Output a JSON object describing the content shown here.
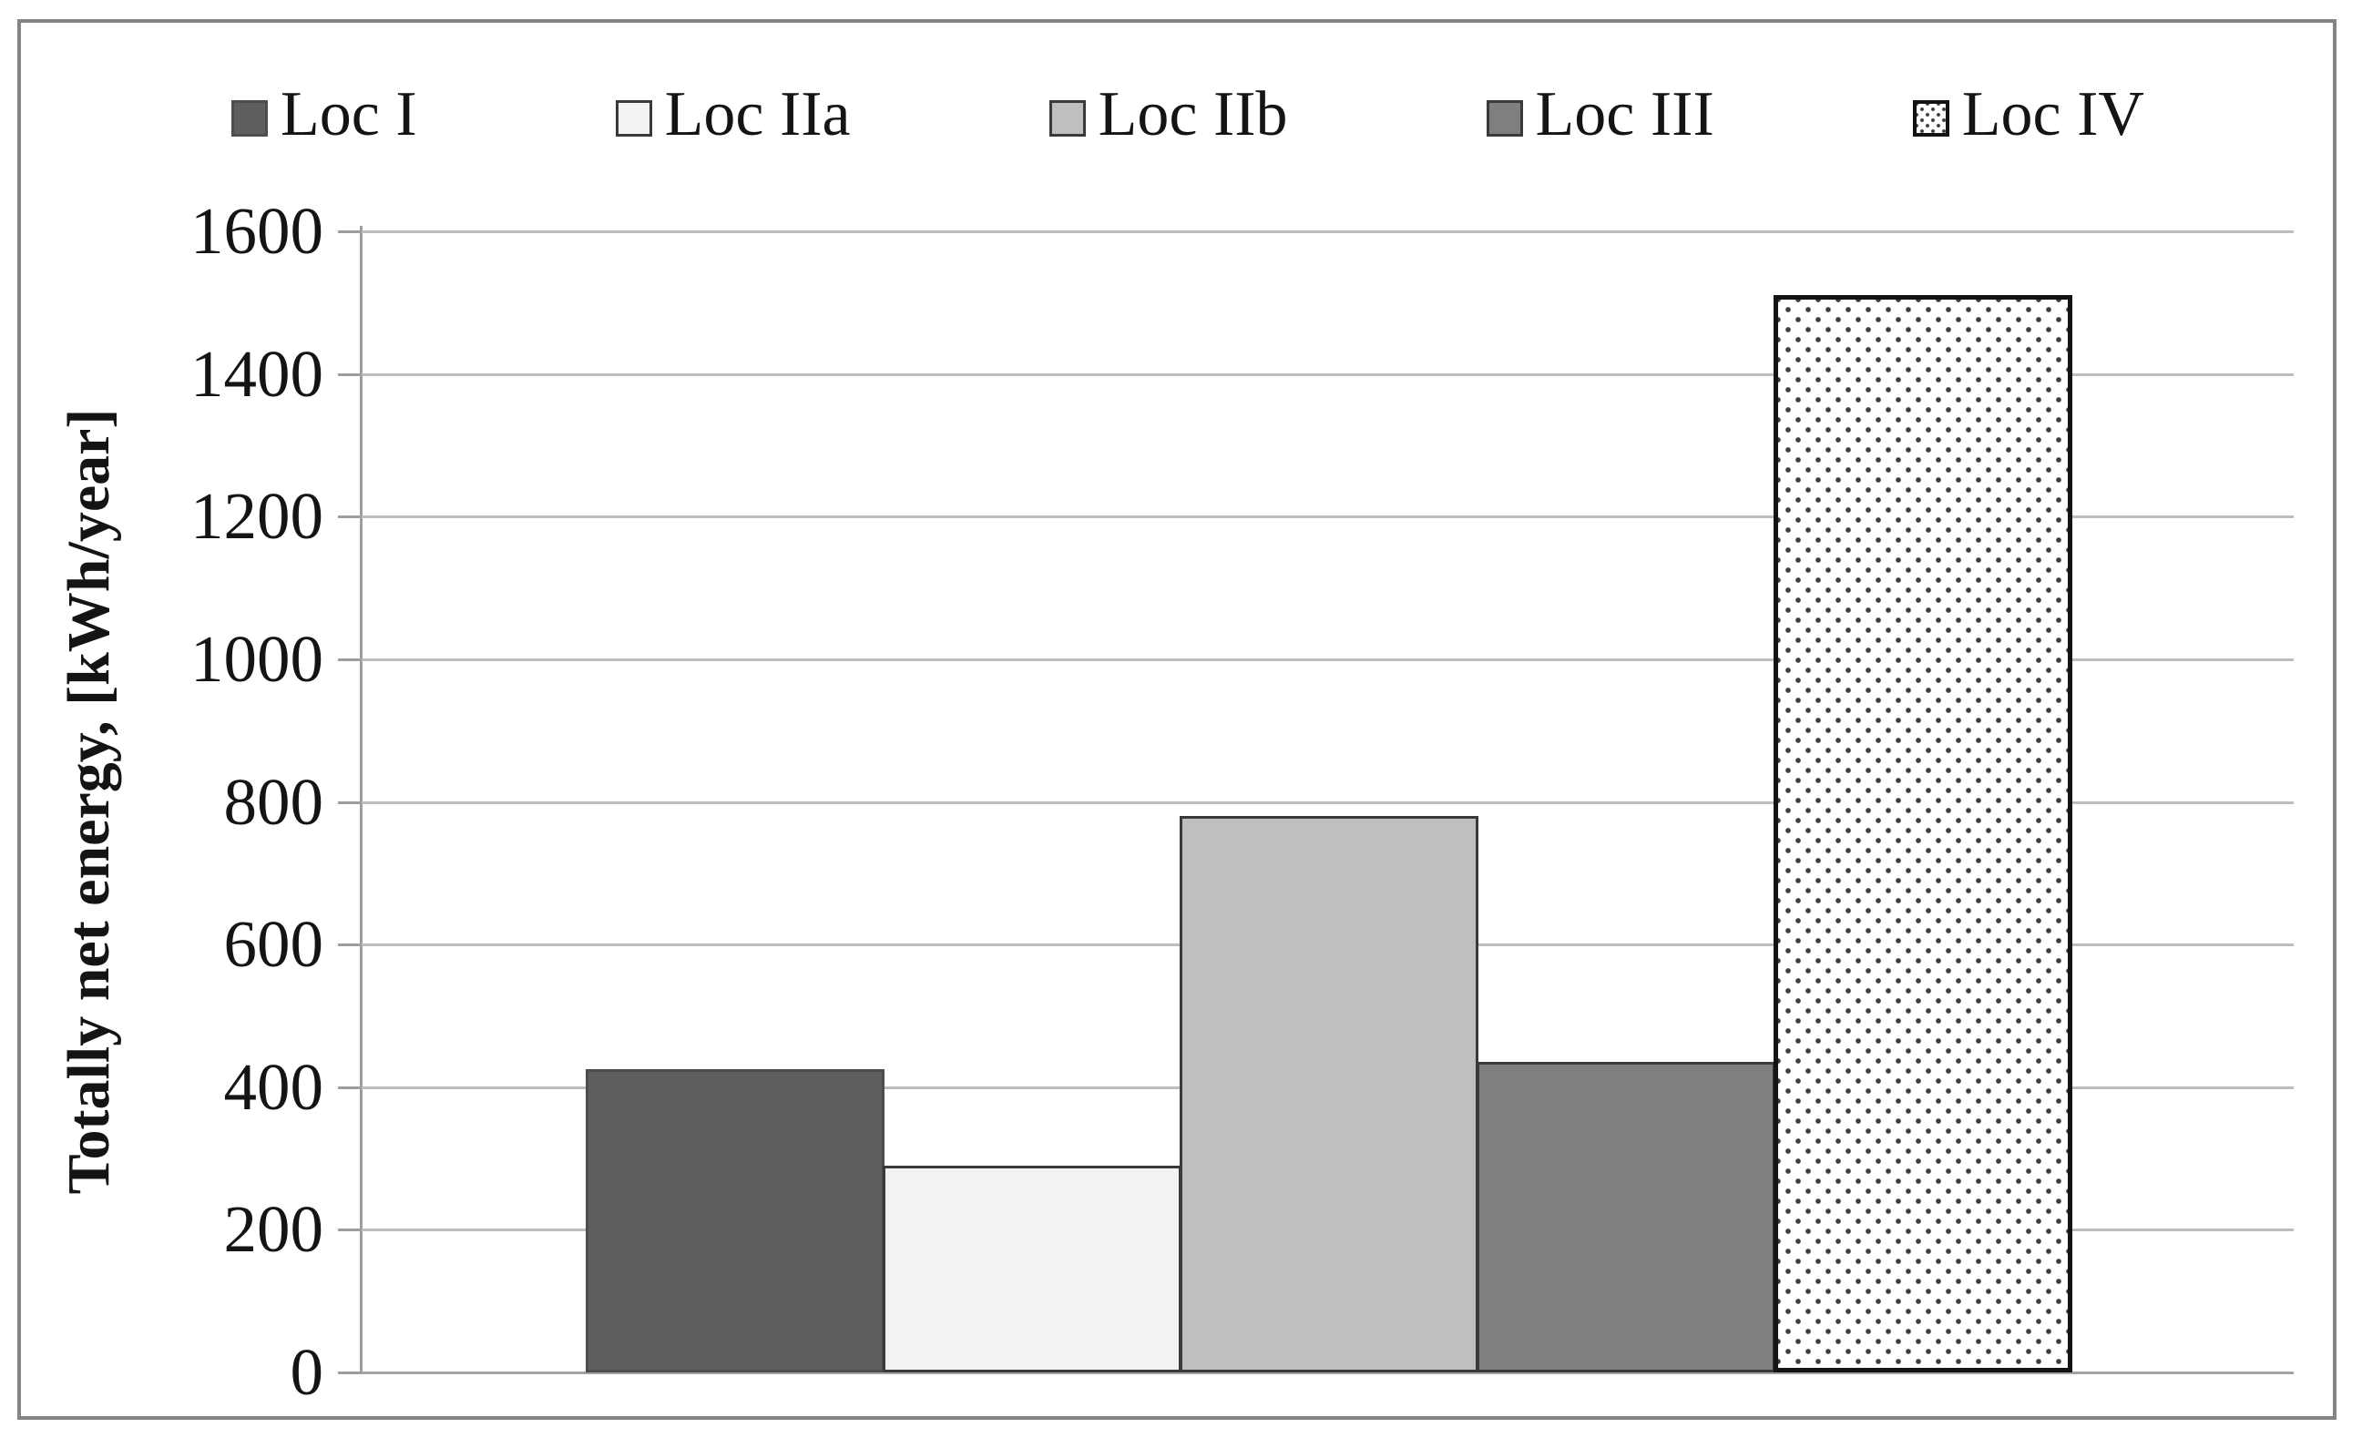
{
  "chart_data": {
    "type": "bar",
    "title": "",
    "xlabel": "",
    "ylabel": "Totally net energy, [kWh/year]",
    "ylim": [
      0,
      1600
    ],
    "ytick_interval": 200,
    "yticks": [
      0,
      200,
      400,
      600,
      800,
      1000,
      1200,
      1400,
      1600
    ],
    "grid": "horizontal",
    "legend_position": "top",
    "categories": [
      "Loc I",
      "Loc IIa",
      "Loc IIb",
      "Loc III",
      "Loc IV"
    ],
    "values": [
      425,
      290,
      780,
      435,
      1510
    ],
    "series": [
      {
        "name": "Loc I",
        "value": 425,
        "fill": "#5f5f5f",
        "border": "#4d4d4d",
        "pattern": "solid"
      },
      {
        "name": "Loc IIa",
        "value": 290,
        "fill": "#f2f2f2",
        "border": "#3a3a3a",
        "pattern": "solid"
      },
      {
        "name": "Loc IIb",
        "value": 780,
        "fill": "#bfbfbf",
        "border": "#3a3a3a",
        "pattern": "solid"
      },
      {
        "name": "Loc III",
        "value": 435,
        "fill": "#7f7f7f",
        "border": "#3a3a3a",
        "pattern": "solid"
      },
      {
        "name": "Loc IV",
        "value": 1510,
        "fill": "#ffffff",
        "border": "#141414",
        "pattern": "dots",
        "dot_color": "#3d3d3d"
      }
    ]
  },
  "frame": {
    "border_color": "#848484"
  },
  "axis": {
    "line_color": "#9d9d9d",
    "grid_color": "#bdbdbd",
    "tick_label_color": "#141414"
  }
}
